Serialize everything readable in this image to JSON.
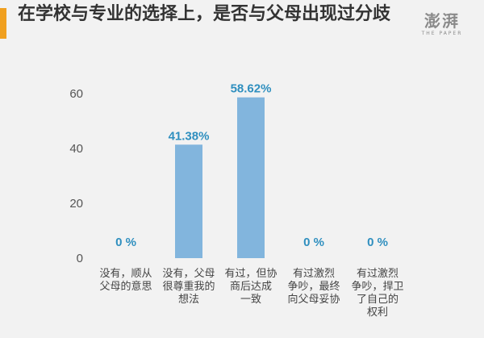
{
  "title": "在学校与专业的选择上，是否与父母出现过分歧",
  "logo": {
    "main": "澎湃",
    "sub": "THE PAPER"
  },
  "colors": {
    "bar": "#82b5dd",
    "data_label": "#2f8fbf",
    "accent": "#f0a020",
    "background": "#f2f2f2"
  },
  "chart_data": {
    "type": "bar",
    "categories": [
      [
        "没有，顺从",
        "父母的意思"
      ],
      [
        "没有，父母",
        "很尊重我的",
        "想法"
      ],
      [
        "有过，但协",
        "商后达成",
        "一致"
      ],
      [
        "有过激烈",
        "争吵，最终",
        "向父母妥协"
      ],
      [
        "有过激烈",
        "争吵，捍卫",
        "了自己的",
        "权利"
      ]
    ],
    "values": [
      0,
      41.38,
      58.62,
      0,
      0
    ],
    "data_labels": [
      "0 %",
      "41.38%",
      "58.62%",
      "0 %",
      "0 %"
    ],
    "ylim": [
      0,
      65
    ],
    "yticks": [
      "0",
      "20",
      "40",
      "60"
    ],
    "grid": false,
    "legend": "none"
  }
}
